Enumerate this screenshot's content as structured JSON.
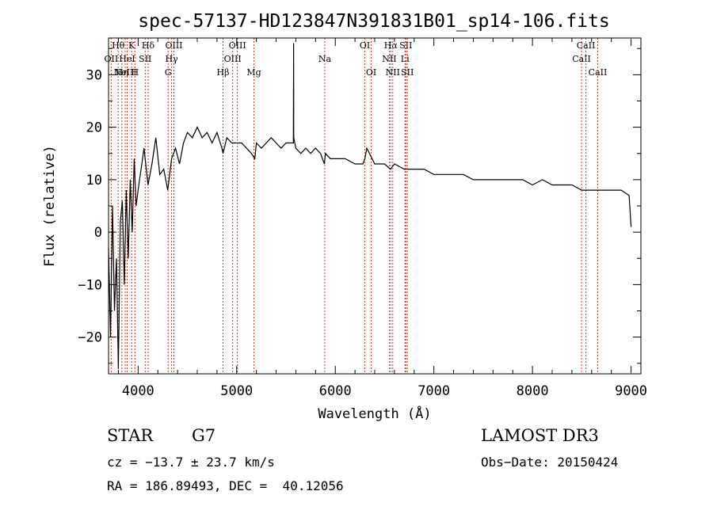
{
  "chart_data": {
    "type": "line",
    "title": "spec-57137-HD123847N391831B01_sp14-106.fits",
    "xlabel": "Wavelength (Å)",
    "ylabel": "Flux (relative)",
    "xlim": [
      3700,
      9100
    ],
    "ylim": [
      -27,
      37
    ],
    "xticks": [
      4000,
      5000,
      6000,
      7000,
      8000,
      9000
    ],
    "yticks": [
      -20,
      -10,
      0,
      10,
      20,
      30
    ],
    "series": [
      {
        "name": "flux",
        "x": [
          3700,
          3720,
          3740,
          3760,
          3780,
          3800,
          3820,
          3840,
          3860,
          3880,
          3900,
          3920,
          3940,
          3960,
          3980,
          4000,
          4030,
          4060,
          4100,
          4140,
          4180,
          4220,
          4260,
          4300,
          4340,
          4380,
          4420,
          4460,
          4500,
          4550,
          4600,
          4650,
          4700,
          4750,
          4800,
          4850,
          4861,
          4900,
          4950,
          5000,
          5050,
          5100,
          5150,
          5183,
          5200,
          5250,
          5300,
          5350,
          5400,
          5450,
          5500,
          5550,
          5575,
          5577,
          5579,
          5600,
          5650,
          5700,
          5750,
          5800,
          5850,
          5890,
          5900,
          5950,
          6000,
          6100,
          6200,
          6280,
          6300,
          6320,
          6400,
          6500,
          6560,
          6600,
          6700,
          6800,
          6900,
          7000,
          7100,
          7200,
          7300,
          7400,
          7500,
          7600,
          7700,
          7800,
          7900,
          8000,
          8100,
          8200,
          8300,
          8400,
          8500,
          8600,
          8700,
          8800,
          8900,
          8980,
          9000
        ],
        "y": [
          -3,
          -20,
          5,
          -15,
          -5,
          -26,
          2,
          6,
          -10,
          8,
          -5,
          10,
          0,
          14,
          5,
          8,
          12,
          16,
          9,
          13,
          18,
          11,
          12,
          8,
          14,
          16,
          13,
          17,
          19,
          18,
          20,
          18,
          19,
          17,
          19,
          16,
          15,
          18,
          17,
          17,
          17,
          16,
          15,
          14,
          17,
          16,
          17,
          18,
          17,
          16,
          17,
          17,
          17,
          36,
          18,
          16,
          15,
          16,
          15,
          16,
          15,
          13,
          15,
          14,
          14,
          14,
          13,
          13,
          14,
          16,
          13,
          13,
          12,
          13,
          12,
          12,
          12,
          11,
          11,
          11,
          11,
          10,
          10,
          10,
          10,
          10,
          10,
          9,
          10,
          9,
          9,
          9,
          8,
          8,
          8,
          8,
          8,
          7,
          1
        ]
      }
    ],
    "lines": [
      {
        "wl": 3727,
        "label": "OII",
        "row": 1
      },
      {
        "wl": 3798,
        "label": "Hθ",
        "row": 0
      },
      {
        "wl": 3835,
        "label": "Hη",
        "row": 2
      },
      {
        "wl": 3869,
        "label": "NeIII",
        "row": 2
      },
      {
        "wl": 3889,
        "label": "HeI",
        "row": 1
      },
      {
        "wl": 3934,
        "label": "K",
        "row": 0
      },
      {
        "wl": 3968,
        "label": "H",
        "row": 2
      },
      {
        "wl": 4072,
        "label": "SII",
        "row": 1
      },
      {
        "wl": 4102,
        "label": "Hδ",
        "row": 0
      },
      {
        "wl": 4304,
        "label": "G",
        "row": 2
      },
      {
        "wl": 4340,
        "label": "Hγ",
        "row": 1
      },
      {
        "wl": 4363,
        "label": "OIII",
        "row": 0
      },
      {
        "wl": 4861,
        "label": "Hβ",
        "row": 2
      },
      {
        "wl": 4959,
        "label": "OIII",
        "row": 1
      },
      {
        "wl": 5007,
        "label": "OIII",
        "row": 0
      },
      {
        "wl": 5175,
        "label": "Mg",
        "row": 2
      },
      {
        "wl": 5893,
        "label": "Na",
        "row": 1
      },
      {
        "wl": 6300,
        "label": "OI",
        "row": 0
      },
      {
        "wl": 6364,
        "label": "OI",
        "row": 2
      },
      {
        "wl": 6548,
        "label": "NII",
        "row": 1
      },
      {
        "wl": 6563,
        "label": "Hα",
        "row": 0
      },
      {
        "wl": 6583,
        "label": "NII",
        "row": 2
      },
      {
        "wl": 6707,
        "label": "Li",
        "row": 1
      },
      {
        "wl": 6716,
        "label": "SII",
        "row": 0
      },
      {
        "wl": 6731,
        "label": "SII",
        "row": 2
      },
      {
        "wl": 8498,
        "label": "CaII",
        "row": 1
      },
      {
        "wl": 8542,
        "label": "CaII",
        "row": 0
      },
      {
        "wl": 8662,
        "label": "CaII",
        "row": 2
      }
    ]
  },
  "info": {
    "object_class": "STAR",
    "subclass": "G7",
    "survey": "LAMOST DR3",
    "cz": "cz = −13.7 ± 23.7 km/s",
    "obs_date": "Obs−Date: 20150424",
    "coords": "RA = 186.89493, DEC =  40.12056"
  },
  "colors": {
    "line": "#000000",
    "marker": "#c0392b",
    "label": "#000000"
  }
}
